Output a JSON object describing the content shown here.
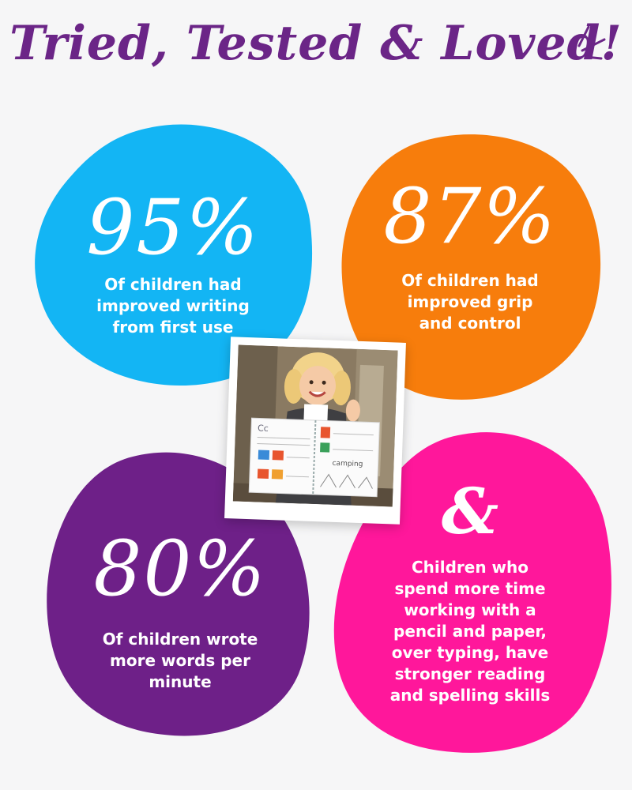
{
  "title": "Tried, Tested & Loved!",
  "colors": {
    "title": "#6b2587",
    "blue": "#13b5f4",
    "orange": "#f77d0c",
    "purple": "#6e2088",
    "pink": "#ff179b",
    "background": "#f6f6f7"
  },
  "stats": [
    {
      "value": "95%",
      "description_lines": [
        "Of children had",
        "improved writing",
        "from first use"
      ]
    },
    {
      "value": "87%",
      "description_lines": [
        "Of children had",
        "improved grip",
        "and control"
      ]
    },
    {
      "value": "80%",
      "description_lines": [
        "Of children wrote",
        "more words per",
        "minute"
      ]
    },
    {
      "value": "&",
      "description_lines": [
        "Children who",
        "spend more time",
        "working with a",
        "pencil and paper,",
        "over typing, have",
        "stronger reading",
        "and spelling skills"
      ]
    }
  ],
  "photo": {
    "icon": "child-with-workbook-photo",
    "workbook_heading": "Cc",
    "workbook_word": "camping"
  }
}
